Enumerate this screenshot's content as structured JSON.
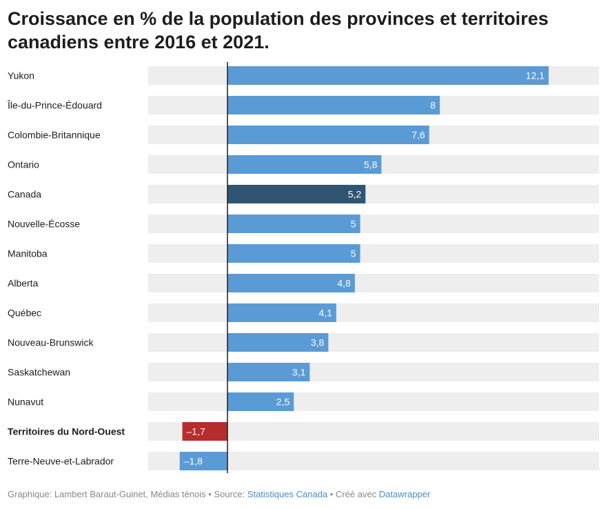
{
  "chart_data": {
    "type": "bar",
    "orientation": "horizontal",
    "title": "Croissance en % de la population des provinces et territoires canadiens entre 2016 et 2021.",
    "categories": [
      "Yukon",
      "Île-du-Prince-Édouard",
      "Colombie-Britannique",
      "Ontario",
      "Canada",
      "Nouvelle-Écosse",
      "Manitoba",
      "Alberta",
      "Québec",
      "Nouveau-Brunswick",
      "Saskatchewan",
      "Nunavut",
      "Territoires du Nord-Ouest",
      "Terre-Neuve-et-Labrador"
    ],
    "values": [
      12.1,
      8,
      7.6,
      5.8,
      5.2,
      5,
      5,
      4.8,
      4.1,
      3.8,
      3.1,
      2.5,
      -1.7,
      -1.8
    ],
    "value_labels": [
      "12,1",
      "8",
      "7,6",
      "5,8",
      "5,2",
      "5",
      "5",
      "4,8",
      "4,1",
      "3,8",
      "3,1",
      "2,5",
      "–1,7",
      "–1,8"
    ],
    "bold_categories": [
      "Territoires du Nord-Ouest"
    ],
    "bar_colors": {
      "default": "#5b9bd5",
      "Canada": "#2f5573",
      "Territoires du Nord-Ouest": "#b72c2c",
      "Terre-Neuve-et-Labrador": "#5b9bd5"
    },
    "background_track_color": "#eeeeee",
    "xlim": [
      -3,
      14
    ],
    "grid": false,
    "legend": "none"
  },
  "footer": {
    "prefix": "Graphique: Lambert Baraut-Guinet, Médias ténois • Source: ",
    "source_link": "Statistiques Canada",
    "middle": " • Créé avec ",
    "tool_link": "Datawrapper"
  }
}
